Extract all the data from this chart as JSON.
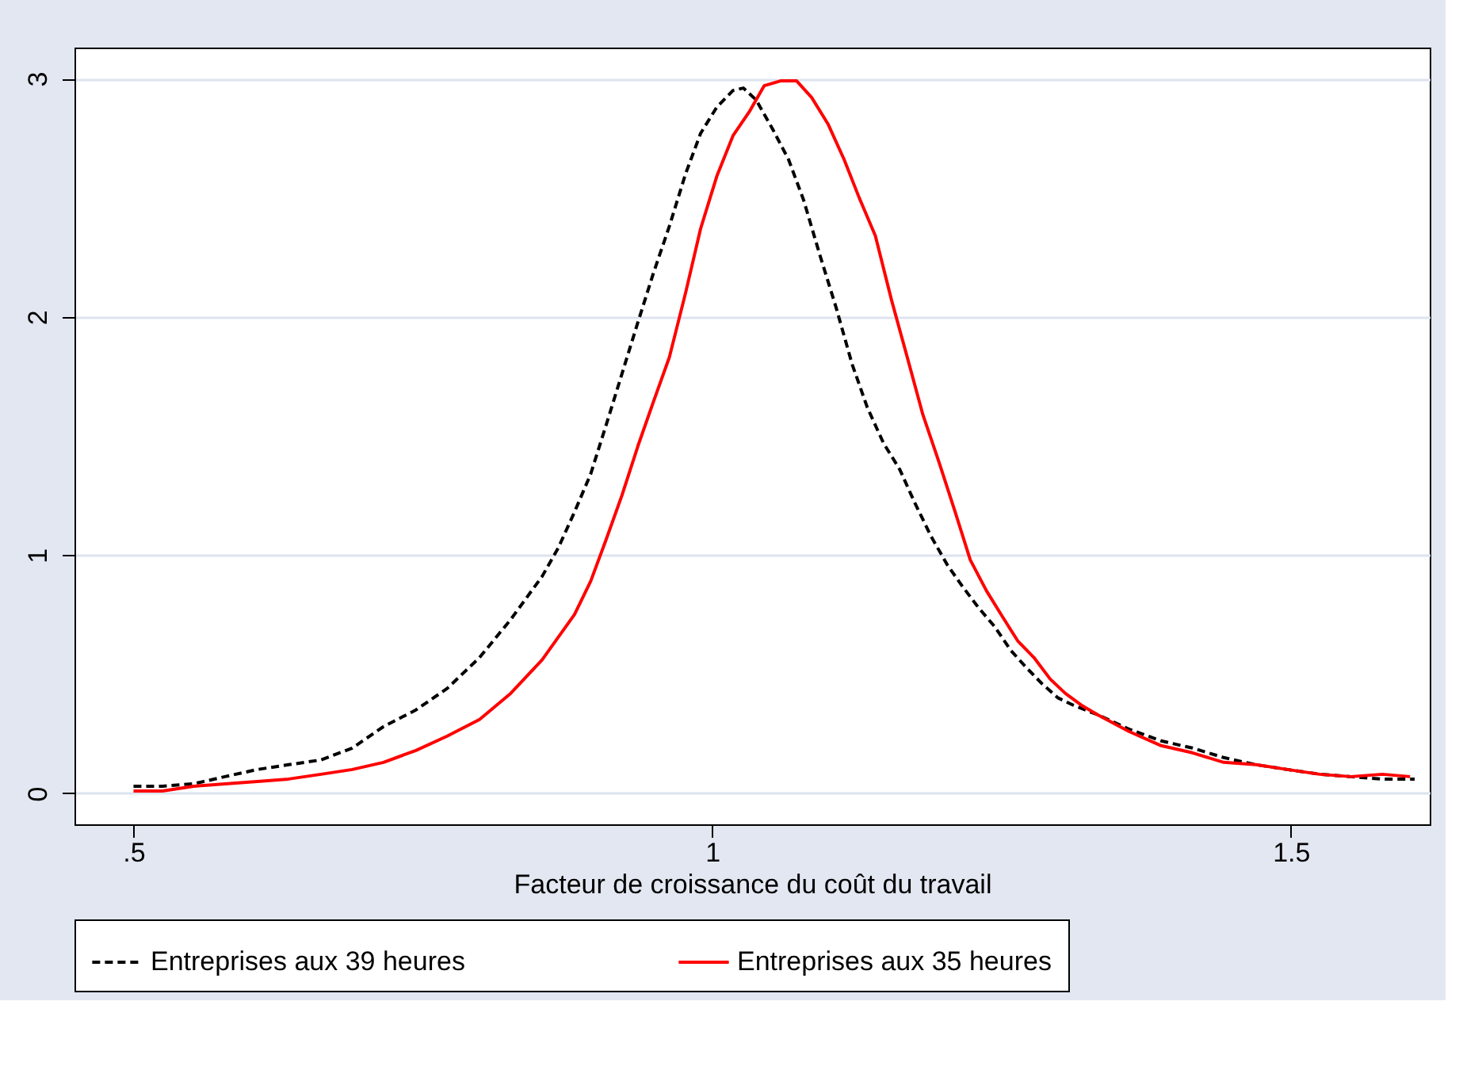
{
  "chart_data": {
    "type": "line",
    "xlabel": "Facteur de croissance du coût du travail",
    "xlim": [
      0.449,
      1.62
    ],
    "ylim": [
      -0.13,
      3.13
    ],
    "xticks": [
      {
        "value": 0.5,
        "label": ".5"
      },
      {
        "value": 1,
        "label": "1"
      },
      1.5
    ],
    "yticks": [
      0,
      1,
      2,
      3
    ],
    "grid": "y",
    "legend": "bottom",
    "marker": "none",
    "series": [
      {
        "name": "Entreprises aux 39 heures",
        "color": "#000000",
        "line_style": "dashed",
        "x": [
          0.5,
          0.525,
          0.552,
          0.579,
          0.607,
          0.634,
          0.662,
          0.689,
          0.716,
          0.744,
          0.771,
          0.799,
          0.826,
          0.853,
          0.867,
          0.881,
          0.895,
          0.908,
          0.922,
          0.936,
          0.949,
          0.963,
          0.977,
          0.99,
          1.004,
          1.018,
          1.027,
          1.038,
          1.052,
          1.066,
          1.079,
          1.093,
          1.107,
          1.121,
          1.134,
          1.148,
          1.162,
          1.175,
          1.189,
          1.203,
          1.216,
          1.23,
          1.244,
          1.258,
          1.271,
          1.285,
          1.299,
          1.312,
          1.333,
          1.36,
          1.388,
          1.415,
          1.442,
          1.47,
          1.497,
          1.525,
          1.552,
          1.579,
          1.607
        ],
        "values": [
          0.03,
          0.03,
          0.04,
          0.07,
          0.1,
          0.12,
          0.14,
          0.19,
          0.28,
          0.35,
          0.44,
          0.57,
          0.73,
          0.91,
          1.03,
          1.18,
          1.34,
          1.54,
          1.76,
          1.98,
          2.18,
          2.38,
          2.6,
          2.77,
          2.88,
          2.95,
          2.96,
          2.91,
          2.79,
          2.66,
          2.49,
          2.26,
          2.04,
          1.8,
          1.62,
          1.47,
          1.36,
          1.22,
          1.08,
          0.96,
          0.87,
          0.78,
          0.7,
          0.6,
          0.53,
          0.46,
          0.4,
          0.37,
          0.33,
          0.27,
          0.22,
          0.19,
          0.15,
          0.12,
          0.1,
          0.08,
          0.07,
          0.06,
          0.06
        ]
      },
      {
        "name": "Entreprises aux 35 heures",
        "color": "#ff0000",
        "line_style": "solid",
        "x": [
          0.5,
          0.525,
          0.552,
          0.579,
          0.607,
          0.634,
          0.662,
          0.689,
          0.716,
          0.744,
          0.771,
          0.799,
          0.826,
          0.853,
          0.881,
          0.895,
          0.908,
          0.922,
          0.936,
          0.949,
          0.963,
          0.977,
          0.99,
          1.004,
          1.018,
          1.032,
          1.045,
          1.059,
          1.073,
          1.086,
          1.1,
          1.114,
          1.127,
          1.141,
          1.155,
          1.168,
          1.182,
          1.196,
          1.21,
          1.223,
          1.237,
          1.251,
          1.264,
          1.278,
          1.292,
          1.305,
          1.319,
          1.333,
          1.36,
          1.388,
          1.415,
          1.442,
          1.47,
          1.497,
          1.525,
          1.552,
          1.579,
          1.603
        ],
        "values": [
          0.01,
          0.01,
          0.03,
          0.04,
          0.05,
          0.06,
          0.08,
          0.1,
          0.13,
          0.18,
          0.24,
          0.31,
          0.42,
          0.56,
          0.75,
          0.89,
          1.06,
          1.25,
          1.46,
          1.64,
          1.83,
          2.1,
          2.37,
          2.59,
          2.76,
          2.86,
          2.97,
          2.99,
          2.99,
          2.92,
          2.81,
          2.66,
          2.5,
          2.34,
          2.07,
          1.84,
          1.59,
          1.39,
          1.18,
          0.98,
          0.85,
          0.74,
          0.64,
          0.57,
          0.48,
          0.42,
          0.37,
          0.33,
          0.26,
          0.2,
          0.17,
          0.13,
          0.12,
          0.1,
          0.08,
          0.07,
          0.08,
          0.07
        ]
      }
    ]
  }
}
